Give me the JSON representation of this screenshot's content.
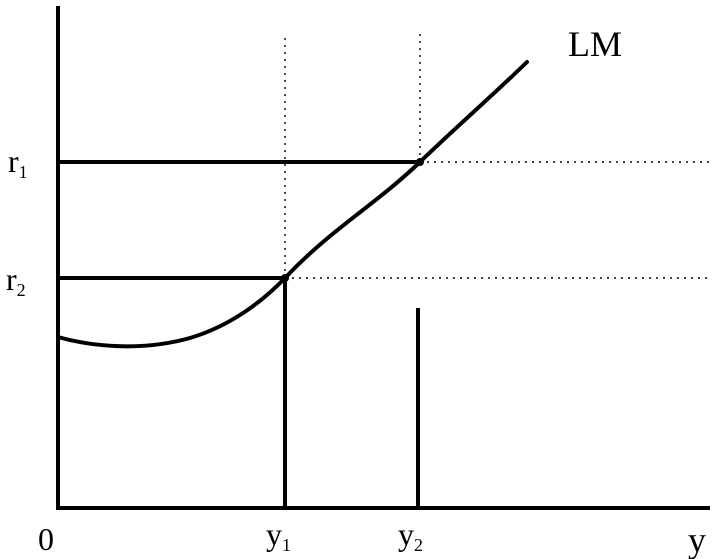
{
  "diagram": {
    "curve_label": "LM",
    "x_axis_label": "y",
    "origin_label": "0",
    "y_ticks": [
      {
        "main": "r",
        "sub": "1"
      },
      {
        "main": "r",
        "sub": "2"
      }
    ],
    "x_ticks": [
      {
        "main": "y",
        "sub": "1"
      },
      {
        "main": "y",
        "sub": "2"
      }
    ]
  }
}
